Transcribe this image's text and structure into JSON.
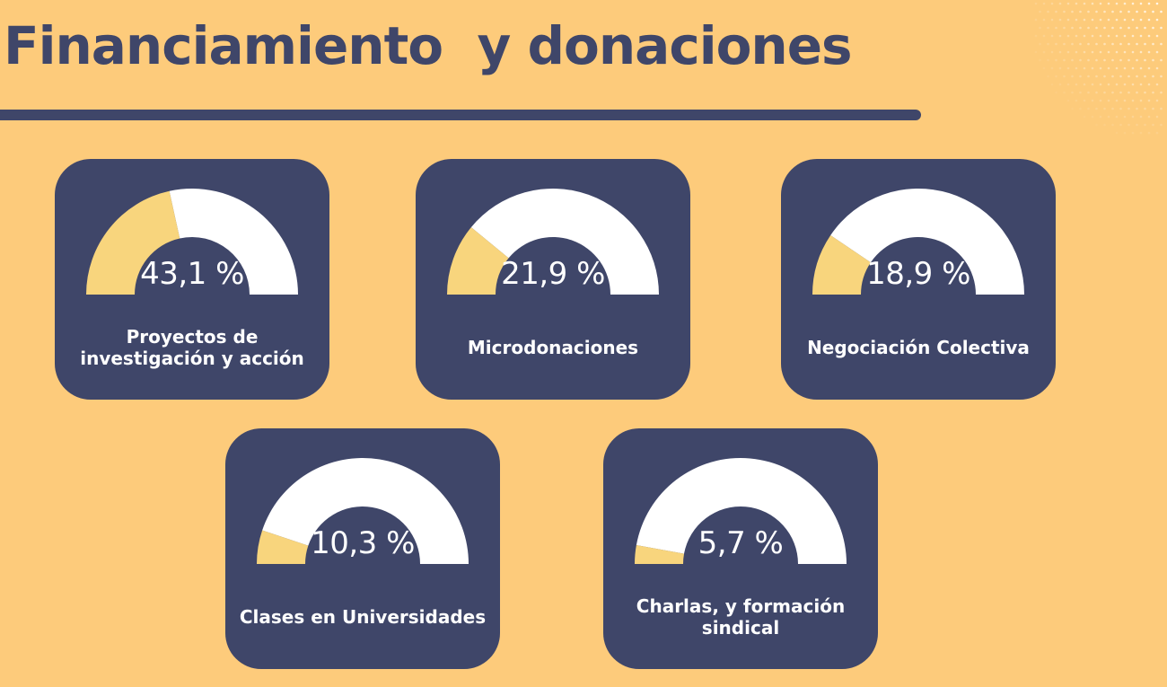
{
  "title": "Financiamiento  y donaciones",
  "colors": {
    "background": "#fdcb7b",
    "card": "#3f4669",
    "gauge_fill": "#f8d57d",
    "gauge_track": "#ffffff",
    "text_dark": "#3f4669",
    "text_light": "#ffffff"
  },
  "cards": [
    {
      "label": "Proyectos de\ninvestigación y acción",
      "value_text": "43,1 %"
    },
    {
      "label": "Microdonaciones",
      "value_text": "21,9 %"
    },
    {
      "label": "Negociación Colectiva",
      "value_text": "18,9 %"
    },
    {
      "label": "Clases en Universidades",
      "value_text": "10,3 %"
    },
    {
      "label": "Charlas, y formación\nsindical",
      "value_text": "5,7 %"
    }
  ],
  "chart_data": {
    "type": "gauge",
    "categories": [
      "Proyectos de investigación y acción",
      "Microdonaciones",
      "Negociación Colectiva",
      "Clases en Universidades",
      "Charlas, y formación sindical"
    ],
    "values": [
      43.1,
      21.9,
      18.9,
      10.3,
      5.7
    ],
    "unit": "%",
    "range": [
      0,
      100
    ]
  }
}
